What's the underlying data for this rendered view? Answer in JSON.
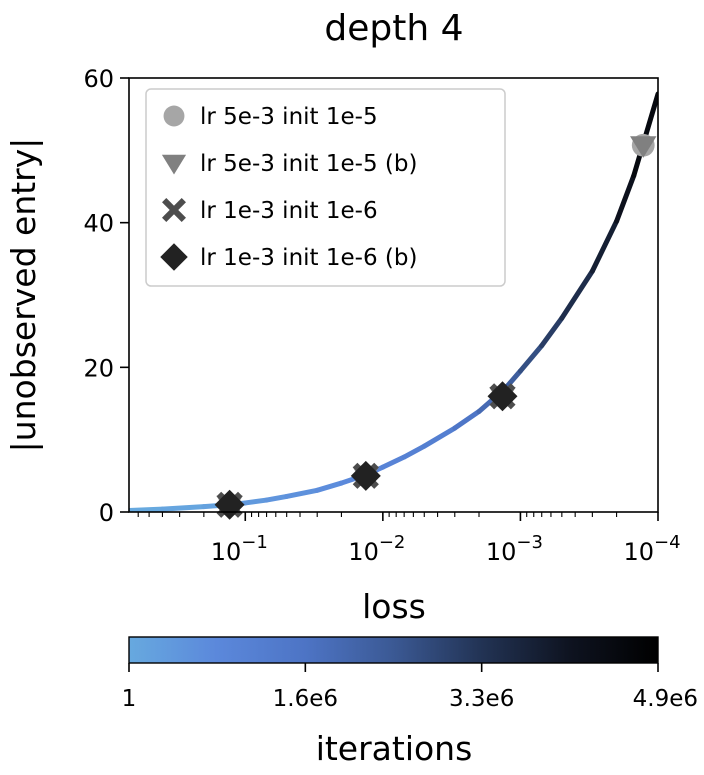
{
  "chart_data": {
    "type": "scatter",
    "title": "depth 4",
    "xlabel": "loss",
    "ylabel": "|unobserved entry|",
    "x_scale": "log",
    "x_reversed": true,
    "xlim": [
      0.7,
      0.0001
    ],
    "ylim": [
      0,
      60
    ],
    "x_ticks": [
      {
        "value": 0.1,
        "base": "10",
        "exp": "−1"
      },
      {
        "value": 0.01,
        "base": "10",
        "exp": "−2"
      },
      {
        "value": 0.001,
        "base": "10",
        "exp": "−3"
      },
      {
        "value": 0.0001,
        "base": "10",
        "exp": "−4"
      }
    ],
    "y_ticks": [
      {
        "value": 0,
        "label": "0"
      },
      {
        "value": 20,
        "label": "20"
      },
      {
        "value": 40,
        "label": "40"
      },
      {
        "value": 60,
        "label": "60"
      }
    ],
    "curve": {
      "x": [
        0.7,
        0.4,
        0.2,
        0.13,
        0.1,
        0.07,
        0.05,
        0.03,
        0.02,
        0.013,
        0.01,
        0.007,
        0.005,
        0.003,
        0.002,
        0.0013,
        0.001,
        0.0007,
        0.0005,
        0.0003,
        0.0002,
        0.00015,
        0.0001
      ],
      "y": [
        0.2,
        0.4,
        0.75,
        1.0,
        1.25,
        1.65,
        2.15,
        3.0,
        4.0,
        5.2,
        6.2,
        7.6,
        9.1,
        11.6,
        13.9,
        17.0,
        19.5,
        23.0,
        26.8,
        33.3,
        40.2,
        46.5,
        57.8
      ]
    },
    "series": [
      {
        "name": "lr 5e-3 init 1e-5",
        "marker": "circle",
        "color": "#a6a6a6",
        "points": [
          [
            0.13,
            1.0
          ],
          [
            0.0133,
            5.0
          ],
          [
            0.00135,
            16.0
          ],
          [
            0.000128,
            50.7
          ]
        ]
      },
      {
        "name": "lr 5e-3 init 1e-5 (b)",
        "marker": "triangle-down",
        "color": "#808080",
        "points": [
          [
            0.13,
            1.0
          ],
          [
            0.0133,
            5.0
          ],
          [
            0.00135,
            16.0
          ],
          [
            0.000128,
            50.7
          ]
        ]
      },
      {
        "name": "lr 1e-3 init 1e-6",
        "marker": "x",
        "color": "#4d4d4d",
        "points": [
          [
            0.13,
            1.0
          ],
          [
            0.0133,
            5.0
          ],
          [
            0.00135,
            16.0
          ]
        ]
      },
      {
        "name": "lr 1e-3 init 1e-6 (b)",
        "marker": "diamond",
        "color": "#222222",
        "points": [
          [
            0.13,
            1.0
          ],
          [
            0.0133,
            5.0
          ],
          [
            0.00135,
            16.0
          ]
        ]
      }
    ],
    "legend_position": "upper-left",
    "colorbar": {
      "label": "iterations",
      "ticks": [
        "1",
        "1.6e6",
        "3.3e6",
        "4.9e6"
      ],
      "colors": [
        "#67a9df",
        "#5b88db",
        "#4d74c5",
        "#3b5994",
        "#223354",
        "#0e1320",
        "#000000"
      ]
    }
  }
}
